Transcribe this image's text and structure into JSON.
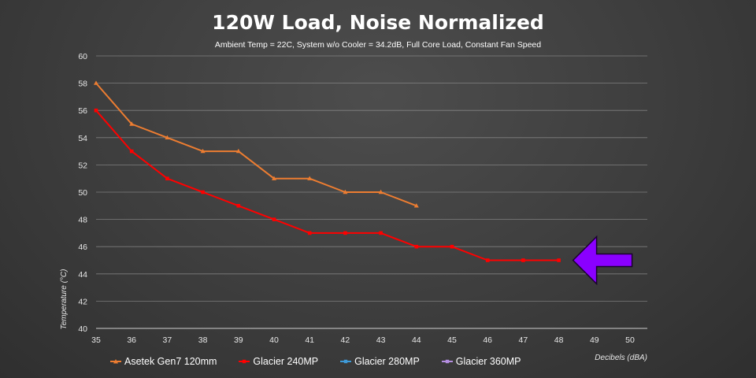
{
  "chart_data": {
    "type": "line",
    "title": "120W Load, Noise Normalized",
    "subtitle": "Ambient Temp = 22C, System w/o Cooler = 34.2dB, Full Core Load, Constant Fan Speed",
    "xlabel": "Decibels (dBA)",
    "ylabel": "Temperature (°C)",
    "xlim": [
      35,
      50
    ],
    "ylim": [
      40,
      60
    ],
    "x_ticks": [
      "35",
      "36",
      "37",
      "38",
      "39",
      "40",
      "41",
      "42",
      "43",
      "44",
      "45",
      "46",
      "47",
      "48",
      "49",
      "50"
    ],
    "y_ticks": [
      "40",
      "42",
      "44",
      "46",
      "48",
      "50",
      "52",
      "54",
      "56",
      "58",
      "60"
    ],
    "grid": true,
    "legend_position": "bottom",
    "series": [
      {
        "name": "Asetek Gen7 120mm",
        "color": "#ed7d31",
        "x": [
          35,
          36,
          37,
          38,
          39,
          40,
          41,
          42,
          43,
          44
        ],
        "values": [
          58,
          55,
          54,
          53,
          53,
          51,
          51,
          50,
          50,
          49
        ]
      },
      {
        "name": "Glacier 240MP",
        "color": "#ff0000",
        "x": [
          35,
          36,
          37,
          38,
          39,
          40,
          41,
          42,
          43,
          44,
          45,
          46,
          47,
          48
        ],
        "values": [
          56,
          53,
          51,
          50,
          49,
          48,
          47,
          47,
          47,
          46,
          46,
          45,
          45,
          45
        ]
      },
      {
        "name": "Glacier 280MP",
        "color": "#3e9ad8",
        "x": [],
        "values": []
      },
      {
        "name": "Glacier 360MP",
        "color": "#b48ee0",
        "x": [],
        "values": []
      }
    ],
    "annotation": {
      "icon": "left-arrow-icon",
      "fill": "#8a00ff",
      "stroke": "#1a0030",
      "points_to": {
        "x": 48,
        "y": 45
      }
    }
  }
}
